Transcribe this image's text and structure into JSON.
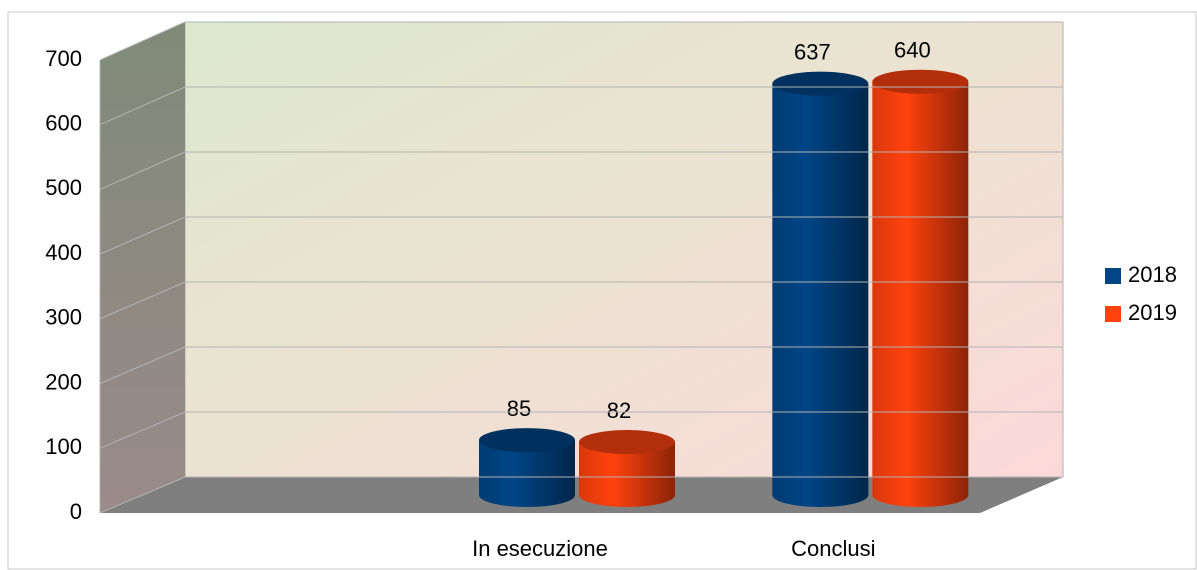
{
  "chart_data": {
    "type": "bar",
    "categories": [
      null,
      "In esecuzione",
      "Conclusi"
    ],
    "series": [
      {
        "name": "2018",
        "color": "#004586",
        "values": [
          null,
          85,
          637
        ]
      },
      {
        "name": "2019",
        "color": "#ff420e",
        "values": [
          null,
          82,
          640
        ]
      }
    ],
    "ylim": [
      0,
      700
    ],
    "yticks": [
      0,
      100,
      200,
      300,
      400,
      500,
      600,
      700
    ],
    "grid": true,
    "legend": "right",
    "style": "3d-cylinder"
  }
}
